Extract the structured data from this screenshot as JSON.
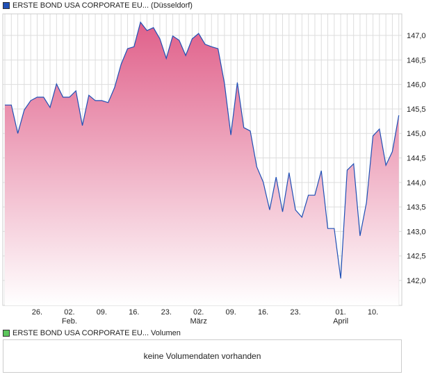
{
  "legend_price": {
    "label": "ERSTE BOND USA CORPORATE EU... (Düsseldorf)",
    "color": "#1f4fb5"
  },
  "legend_volume": {
    "label": "ERSTE BOND USA CORPORATE EU... Volumen",
    "color": "#5cc65c"
  },
  "volume_message": "keine Volumendaten vorhanden",
  "chart_data": {
    "type": "area",
    "title": "ERSTE BOND USA CORPORATE EU... (Düsseldorf)",
    "ylim": [
      141.49,
      147.44
    ],
    "y_ticks": [
      142.0,
      142.5,
      143.0,
      143.5,
      144.0,
      144.5,
      145.0,
      145.5,
      146.0,
      146.5,
      147.0
    ],
    "y_tick_labels": [
      "142,0",
      "142,5",
      "143,0",
      "143,5",
      "144,0",
      "144,5",
      "145,0",
      "145,5",
      "146,0",
      "146,5",
      "147,0"
    ],
    "x_ticks": [
      {
        "index": 5,
        "label": "26.",
        "month": ""
      },
      {
        "index": 10,
        "label": "02.",
        "month": "Feb."
      },
      {
        "index": 15,
        "label": "09.",
        "month": ""
      },
      {
        "index": 20,
        "label": "16.",
        "month": ""
      },
      {
        "index": 25,
        "label": "23.",
        "month": ""
      },
      {
        "index": 30,
        "label": "02.",
        "month": "März"
      },
      {
        "index": 35,
        "label": "09.",
        "month": ""
      },
      {
        "index": 40,
        "label": "16.",
        "month": ""
      },
      {
        "index": 45,
        "label": "23.",
        "month": ""
      },
      {
        "index": 52,
        "label": "01.",
        "month": "April"
      },
      {
        "index": 57,
        "label": "10.",
        "month": ""
      }
    ],
    "values": [
      145.58,
      145.58,
      145.0,
      145.48,
      145.67,
      145.74,
      145.74,
      145.53,
      146.01,
      145.74,
      145.74,
      145.87,
      145.16,
      145.78,
      145.67,
      145.67,
      145.63,
      145.94,
      146.41,
      146.73,
      146.77,
      147.27,
      147.1,
      147.16,
      146.93,
      146.53,
      146.99,
      146.9,
      146.59,
      146.93,
      147.04,
      146.82,
      146.77,
      146.73,
      146.02,
      144.97,
      146.04,
      145.12,
      145.05,
      144.32,
      144.01,
      143.44,
      144.11,
      143.4,
      144.2,
      143.44,
      143.29,
      143.74,
      143.74,
      144.24,
      143.06,
      143.06,
      142.04,
      144.25,
      144.38,
      142.91,
      143.59,
      144.95,
      145.09,
      144.35,
      144.63,
      145.37
    ],
    "line_color": "#1f4fb5",
    "fill_top": "#e0608a",
    "fill_bottom": "#ffffff",
    "grid": true
  }
}
